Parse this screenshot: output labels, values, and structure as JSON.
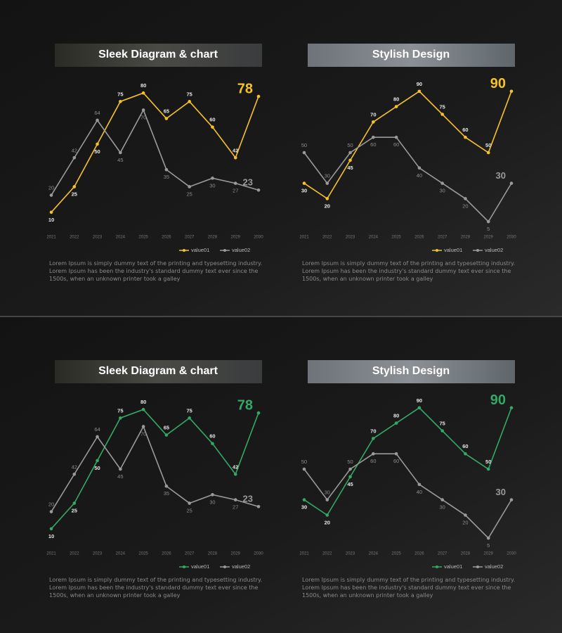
{
  "chart_data": [
    {
      "type": "line",
      "title": "Sleek Diagram & chart",
      "categories": [
        "2021",
        "2022",
        "2023",
        "2024",
        "2025",
        "2026",
        "2027",
        "2028",
        "2029",
        "2030"
      ],
      "series": [
        {
          "name": "value01",
          "color": "#f5c22a",
          "values": [
            10,
            25,
            50,
            75,
            80,
            65,
            75,
            60,
            42,
            78
          ]
        },
        {
          "name": "value02",
          "color": "#9a9a9a",
          "values": [
            20,
            42,
            64,
            45,
            70,
            35,
            25,
            30,
            27,
            23
          ]
        }
      ],
      "ylim": [
        0,
        90
      ],
      "description": "Lorem Ipsum is simply dummy text of the printing and typesetting industry. Lorem Ipsum has been the industry's standard dummy text ever since the 1500s, when an unknown printer took a galley"
    },
    {
      "type": "line",
      "title": "Stylish Design",
      "categories": [
        "2021",
        "2022",
        "2023",
        "2024",
        "2025",
        "2026",
        "2027",
        "2028",
        "2029",
        "2030"
      ],
      "series": [
        {
          "name": "value01",
          "color": "#f5c22a",
          "values": [
            30,
            20,
            45,
            70,
            80,
            90,
            75,
            60,
            50,
            90
          ]
        },
        {
          "name": "value02",
          "color": "#9a9a9a",
          "values": [
            50,
            30,
            50,
            60,
            60,
            40,
            30,
            20,
            5,
            30
          ]
        }
      ],
      "ylim": [
        0,
        100
      ],
      "description": "Lorem Ipsum is simply dummy text of the printing and typesetting industry. Lorem Ipsum has been the industry's standard dummy text ever since the 1500s, when an unknown printer took a galley"
    },
    {
      "type": "line",
      "title": "Sleek Diagram & chart",
      "categories": [
        "2021",
        "2022",
        "2023",
        "2024",
        "2025",
        "2026",
        "2027",
        "2028",
        "2029",
        "2030"
      ],
      "series": [
        {
          "name": "value01",
          "color": "#34a865",
          "values": [
            10,
            25,
            50,
            75,
            80,
            65,
            75,
            60,
            42,
            78
          ]
        },
        {
          "name": "value02",
          "color": "#9a9a9a",
          "values": [
            20,
            42,
            64,
            45,
            70,
            35,
            25,
            30,
            27,
            23
          ]
        }
      ],
      "ylim": [
        0,
        90
      ],
      "description": "Lorem Ipsum is simply dummy text of the printing and typesetting industry. Lorem Ipsum has been the industry's standard dummy text ever since the 1500s, when an unknown printer took a galley"
    },
    {
      "type": "line",
      "title": "Stylish Design",
      "categories": [
        "2021",
        "2022",
        "2023",
        "2024",
        "2025",
        "2026",
        "2027",
        "2028",
        "2029",
        "2030"
      ],
      "series": [
        {
          "name": "value01",
          "color": "#34a865",
          "values": [
            30,
            20,
            45,
            70,
            80,
            90,
            75,
            60,
            50,
            90
          ]
        },
        {
          "name": "value02",
          "color": "#9a9a9a",
          "values": [
            50,
            30,
            50,
            60,
            60,
            40,
            30,
            20,
            5,
            30
          ]
        }
      ],
      "ylim": [
        0,
        100
      ],
      "description": "Lorem Ipsum is simply dummy text of the printing and typesetting industry. Lorem Ipsum has been the industry's standard dummy text ever since the 1500s, when an unknown printer took a galley"
    }
  ]
}
